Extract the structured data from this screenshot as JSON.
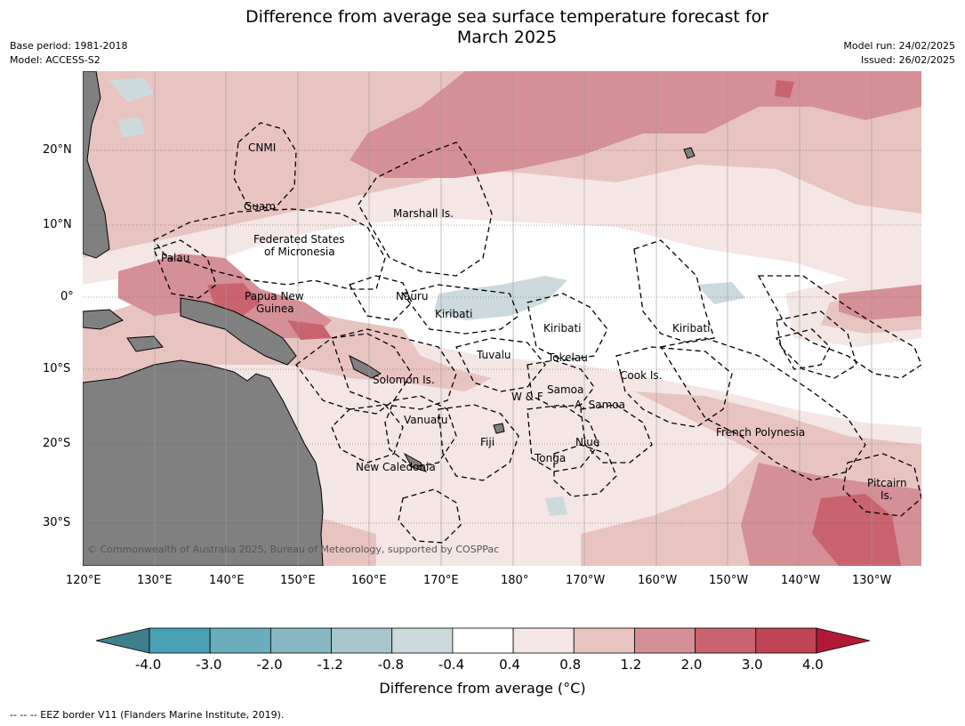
{
  "title_line1": "Difference from average sea surface temperature forecast for",
  "title_line2": "March 2025",
  "meta_left": {
    "base_period": "Base period: 1981-2018",
    "model": "Model: ACCESS-S2"
  },
  "meta_right": {
    "model_run": "Model run: 24/02/2025",
    "issued": "Issued: 26/02/2025"
  },
  "lat_ticks": [
    "20°N",
    "10°N",
    "0°",
    "10°S",
    "20°S",
    "30°S"
  ],
  "lon_ticks": [
    "120°E",
    "130°E",
    "140°E",
    "150°E",
    "160°E",
    "170°E",
    "180°",
    "170°W",
    "160°W",
    "150°W",
    "140°W",
    "130°W"
  ],
  "regions": {
    "cnmi": "CNMI",
    "guam": "Guam",
    "marshall": "Marshall Is.",
    "fsm_line1": "Federated States",
    "fsm_line2": "of Micronesia",
    "palau": "Palau",
    "nauru": "Nauru",
    "png_line1": "Papua New",
    "png_line2": "Guinea",
    "kiribati_west": "Kiribati",
    "kiribati_central": "Kiribati",
    "kiribati_east": "Kiribati",
    "tuvalu": "Tuvalu",
    "tokelau": "Tokelau",
    "cook": "Cook Is.",
    "solomon": "Solomon Is.",
    "wf": "W & F",
    "samoa": "Samoa",
    "asamoa": "A. Samoa",
    "vanuatu": "Vanuatu",
    "fiji": "Fiji",
    "niue": "Niue",
    "tonga": "Tonga",
    "newcal": "New Caledonia",
    "frenchpoly": "French Polynesia",
    "pitcairn_line1": "Pitcairn",
    "pitcairn_line2": "Is."
  },
  "copyright": "© Commonwealth of Australia 2025, Bureau of Meteorology, supported by COSPPac",
  "colorbar": {
    "labels": [
      "-4.0",
      "-3.0",
      "-2.0",
      "-1.2",
      "-0.8",
      "-0.4",
      "0.4",
      "0.8",
      "1.2",
      "2.0",
      "3.0",
      "4.0"
    ],
    "colors": [
      "#3f7f8c",
      "#47a1b2",
      "#6aaebd",
      "#88b7c3",
      "#a7c7cc",
      "#cddadd",
      "#ffffff",
      "#f4e6e4",
      "#e8c4c1",
      "#d58f97",
      "#c9646f",
      "#bf4454",
      "#b01a35"
    ],
    "title": "Difference from average (°C)"
  },
  "footer": "--  --  -- EEZ border V11 (Flanders Marine Institute, 2019)."
}
